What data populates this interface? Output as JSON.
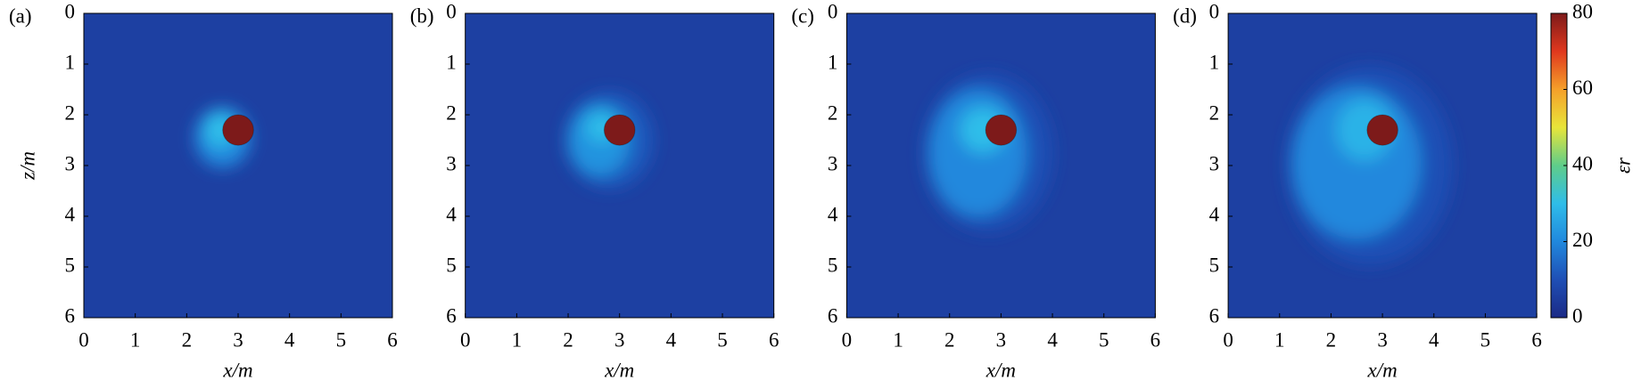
{
  "chart_data": [
    {
      "type": "heatmap",
      "label": "(a)",
      "xlabel": "x/m",
      "ylabel": "z/m",
      "xlim": [
        0,
        6
      ],
      "ylim": [
        0,
        6
      ],
      "xticks": [
        0,
        1,
        2,
        3,
        4,
        5,
        6
      ],
      "yticks": [
        0,
        1,
        2,
        3,
        4,
        5,
        6
      ],
      "background": 6,
      "layers": [
        {
          "cx": 2.7,
          "cz": 2.45,
          "rx": 0.55,
          "rz": 0.6,
          "value": 20
        },
        {
          "cx": 2.65,
          "cz": 2.3,
          "rx": 0.3,
          "rz": 0.35,
          "value": 30
        }
      ],
      "object": {
        "cx": 3,
        "cz": 2.3,
        "r": 0.3,
        "value": 80
      }
    },
    {
      "type": "heatmap",
      "label": "(b)",
      "xlabel": "x/m",
      "xlim": [
        0,
        6
      ],
      "ylim": [
        0,
        6
      ],
      "xticks": [
        0,
        1,
        2,
        3,
        4,
        5,
        6
      ],
      "yticks": [
        0,
        1,
        2,
        3,
        4,
        5,
        6
      ],
      "background": 6,
      "layers": [
        {
          "cx": 2.8,
          "cz": 2.5,
          "rx": 0.85,
          "rz": 0.95,
          "value": 12
        },
        {
          "cx": 2.6,
          "cz": 2.5,
          "rx": 0.6,
          "rz": 0.7,
          "value": 22
        },
        {
          "cx": 2.65,
          "cz": 2.25,
          "rx": 0.3,
          "rz": 0.3,
          "value": 30
        }
      ],
      "object": {
        "cx": 3,
        "cz": 2.3,
        "r": 0.3,
        "value": 80
      }
    },
    {
      "type": "heatmap",
      "label": "(c)",
      "xlabel": "x/m",
      "xlim": [
        0,
        6
      ],
      "ylim": [
        0,
        6
      ],
      "xticks": [
        0,
        1,
        2,
        3,
        4,
        5,
        6
      ],
      "yticks": [
        0,
        1,
        2,
        3,
        4,
        5,
        6
      ],
      "background": 6,
      "layers": [
        {
          "cx": 2.75,
          "cz": 2.75,
          "rx": 1.25,
          "rz": 1.55,
          "value": 10
        },
        {
          "cx": 2.55,
          "cz": 2.75,
          "rx": 0.95,
          "rz": 1.25,
          "value": 20
        },
        {
          "cx": 2.65,
          "cz": 2.3,
          "rx": 0.45,
          "rz": 0.45,
          "value": 30
        }
      ],
      "object": {
        "cx": 3,
        "cz": 2.3,
        "r": 0.3,
        "value": 80
      }
    },
    {
      "type": "heatmap",
      "label": "(d)",
      "xlabel": "x/m",
      "xlim": [
        0,
        6
      ],
      "ylim": [
        0,
        6
      ],
      "xticks": [
        0,
        1,
        2,
        3,
        4,
        5,
        6
      ],
      "yticks": [
        0,
        1,
        2,
        3,
        4,
        5,
        6
      ],
      "background": 6,
      "layers": [
        {
          "cx": 2.75,
          "cz": 3.0,
          "rx": 1.6,
          "rz": 1.95,
          "value": 10
        },
        {
          "cx": 2.5,
          "cz": 2.95,
          "rx": 1.25,
          "rz": 1.5,
          "value": 20
        },
        {
          "cx": 2.65,
          "cz": 2.3,
          "rx": 0.55,
          "rz": 0.6,
          "value": 28
        }
      ],
      "object": {
        "cx": 3,
        "cz": 2.3,
        "r": 0.3,
        "value": 80
      }
    }
  ],
  "colorbar": {
    "label": "εr",
    "lim": [
      0,
      80
    ],
    "ticks": [
      0,
      20,
      40,
      60,
      80
    ],
    "colormap": [
      "#1b2a86",
      "#1f4fb5",
      "#2088dd",
      "#2fbde9",
      "#5fcd8a",
      "#e8e53a",
      "#f5a02a",
      "#e0381e",
      "#7d1a1a"
    ]
  }
}
